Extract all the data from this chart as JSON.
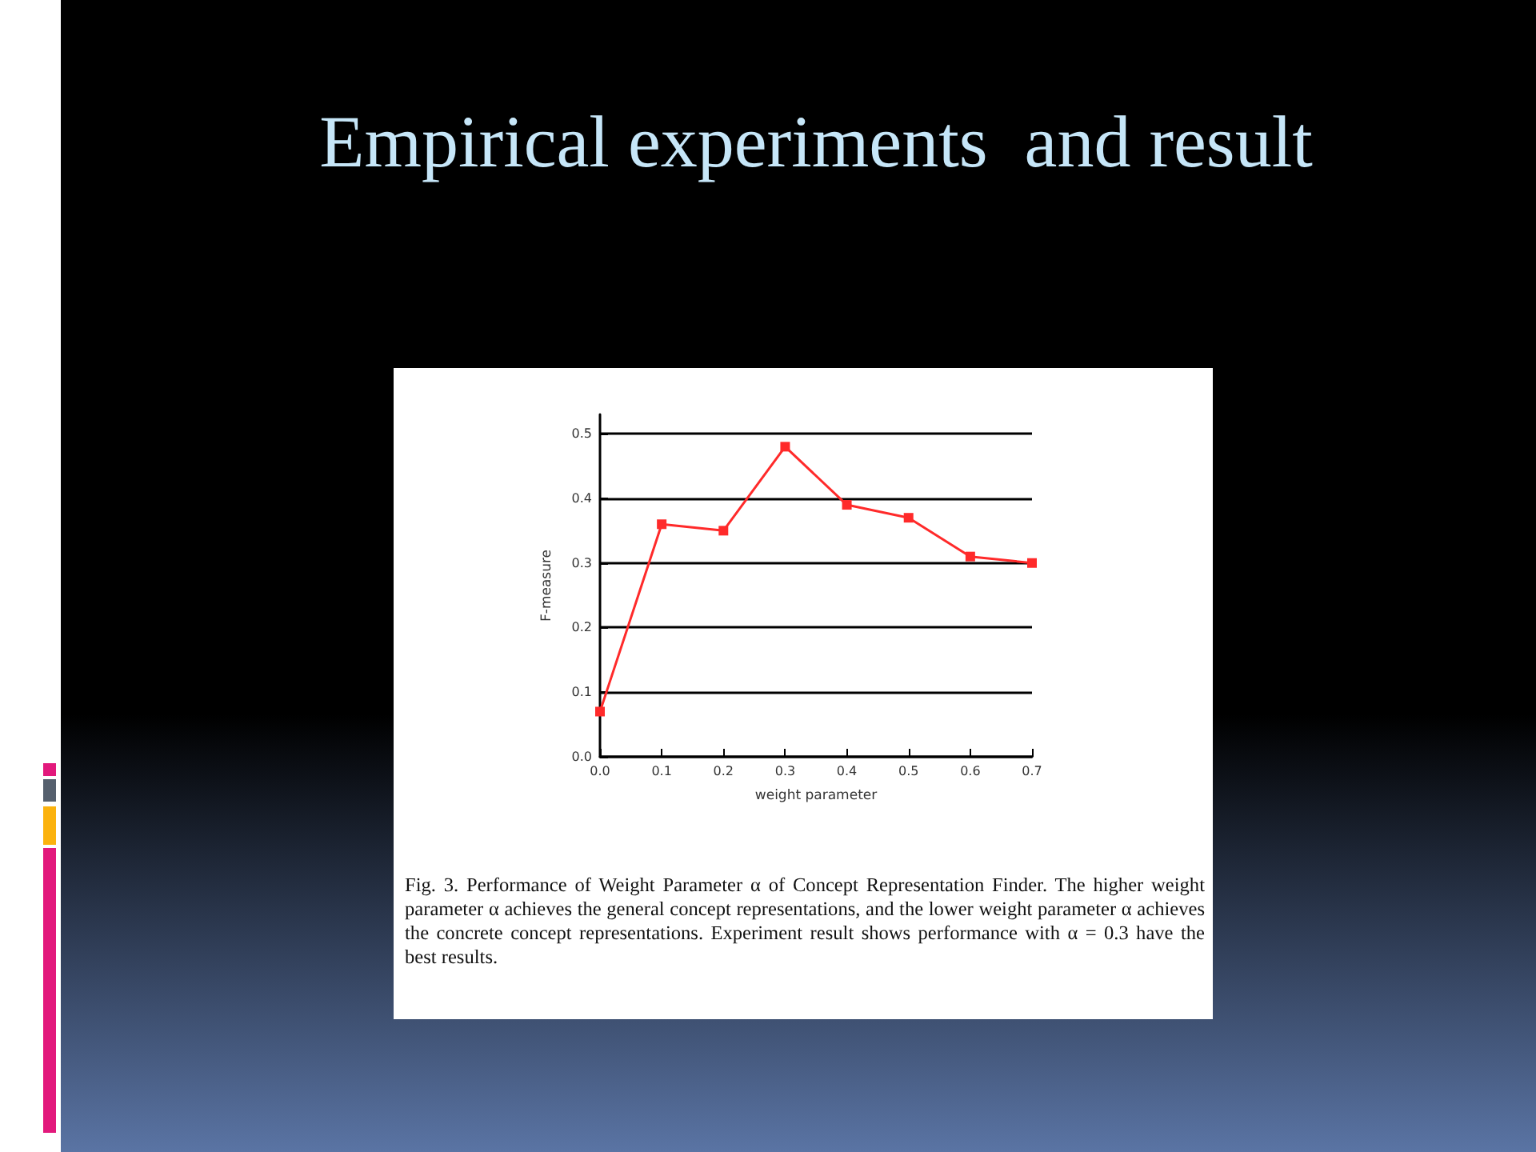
{
  "chart_data": {
    "type": "line",
    "title": "Empirical experiments  and result",
    "xlabel": "weight parameter",
    "ylabel": "F-measure",
    "x": [
      0.0,
      0.1,
      0.2,
      0.3,
      0.4,
      0.5,
      0.6,
      0.7
    ],
    "series": [
      {
        "color": "#ff2a2a",
        "values": [
          0.07,
          0.36,
          0.35,
          0.48,
          0.39,
          0.37,
          0.31,
          0.3
        ]
      }
    ],
    "xlim": [
      0,
      0.7
    ],
    "xticks": [
      {
        "value": 0,
        "label": "0.0"
      },
      0.1,
      0.2,
      0.3,
      0.4,
      0.5,
      0.6,
      0.7
    ],
    "ylim": [
      0,
      0.53
    ],
    "yticks": [
      {
        "value": 0,
        "label": "0.0"
      },
      0.1,
      0.2,
      0.3,
      0.4,
      0.5
    ],
    "grid": "y",
    "marker": "square",
    "line_style": "solid",
    "legend": false,
    "annotations": [
      "Fig. 3.    Performance of Weight Parameter α of Concept Representation Finder. The higher weight parameter α achieves the general concept representations, and the lower weight parameter α achieves the concrete concept representations. Experiment result shows performance with α = 0.3 have the best results."
    ]
  }
}
